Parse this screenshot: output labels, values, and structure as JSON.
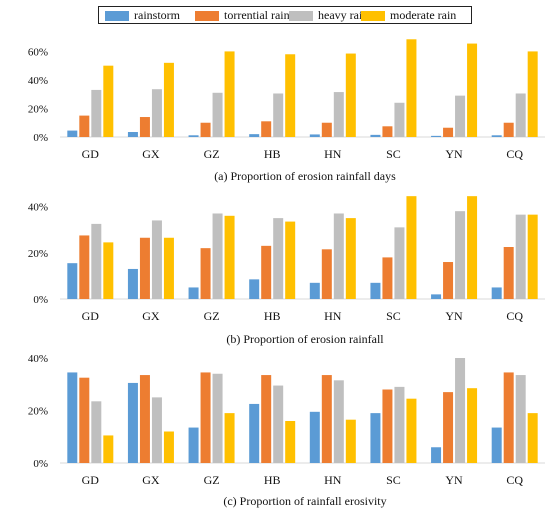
{
  "colors": {
    "rainstorm": "#5b9bd5",
    "torrential": "#ed7d31",
    "heavy": "#bfbfbf",
    "moderate": "#ffc000",
    "axis": "#d9d9d9",
    "text": "#111111"
  },
  "legend": [
    "rainstorm",
    "torrential rain",
    "heavy rain",
    "moderate rain"
  ],
  "chart_data": [
    {
      "type": "bar",
      "title": "(a) Proportion of erosion rainfall days",
      "categories": [
        "GD",
        "GX",
        "GZ",
        "HB",
        "HN",
        "SC",
        "YN",
        "CQ"
      ],
      "yticks": [
        "0%",
        "20%",
        "40%",
        "60%"
      ],
      "ylim": [
        0,
        0.68
      ],
      "grid": false,
      "legend_position": "top",
      "series": [
        {
          "name": "rainstorm",
          "values": [
            0.045,
            0.035,
            0.012,
            0.02,
            0.018,
            0.015,
            0.008,
            0.012
          ]
        },
        {
          "name": "torrential rain",
          "values": [
            0.15,
            0.14,
            0.1,
            0.11,
            0.1,
            0.075,
            0.065,
            0.1
          ]
        },
        {
          "name": "heavy rain",
          "values": [
            0.33,
            0.335,
            0.31,
            0.305,
            0.315,
            0.24,
            0.29,
            0.305
          ]
        },
        {
          "name": "moderate rain",
          "values": [
            0.5,
            0.52,
            0.6,
            0.58,
            0.585,
            0.685,
            0.655,
            0.6
          ]
        }
      ]
    },
    {
      "type": "bar",
      "title": "(b) Proportion of erosion rainfall",
      "categories": [
        "GD",
        "GX",
        "GZ",
        "HB",
        "HN",
        "SC",
        "YN",
        "CQ"
      ],
      "yticks": [
        "0%",
        "20%",
        "40%"
      ],
      "ylim": [
        0,
        0.45
      ],
      "grid": false,
      "series": [
        {
          "name": "rainstorm",
          "values": [
            0.155,
            0.13,
            0.05,
            0.085,
            0.07,
            0.07,
            0.02,
            0.05
          ]
        },
        {
          "name": "torrential rain",
          "values": [
            0.275,
            0.265,
            0.22,
            0.23,
            0.215,
            0.18,
            0.16,
            0.225
          ]
        },
        {
          "name": "heavy rain",
          "values": [
            0.325,
            0.34,
            0.37,
            0.35,
            0.37,
            0.31,
            0.38,
            0.365
          ]
        },
        {
          "name": "moderate rain",
          "values": [
            0.245,
            0.265,
            0.36,
            0.335,
            0.35,
            0.445,
            0.445,
            0.365
          ]
        }
      ]
    },
    {
      "type": "bar",
      "title": "(c) Proportion of rainfall erosivity",
      "categories": [
        "GD",
        "GX",
        "GZ",
        "HB",
        "HN",
        "SC",
        "YN",
        "CQ"
      ],
      "yticks": [
        "0%",
        "20%",
        "40%"
      ],
      "ylim": [
        0,
        0.4
      ],
      "grid": false,
      "series": [
        {
          "name": "rainstorm",
          "values": [
            0.345,
            0.305,
            0.135,
            0.225,
            0.195,
            0.19,
            0.06,
            0.135
          ]
        },
        {
          "name": "torrential rain",
          "values": [
            0.325,
            0.335,
            0.345,
            0.335,
            0.335,
            0.28,
            0.27,
            0.345
          ]
        },
        {
          "name": "heavy rain",
          "values": [
            0.235,
            0.25,
            0.34,
            0.295,
            0.315,
            0.29,
            0.4,
            0.335
          ]
        },
        {
          "name": "moderate rain",
          "values": [
            0.105,
            0.12,
            0.19,
            0.16,
            0.165,
            0.245,
            0.285,
            0.19
          ]
        }
      ]
    }
  ]
}
